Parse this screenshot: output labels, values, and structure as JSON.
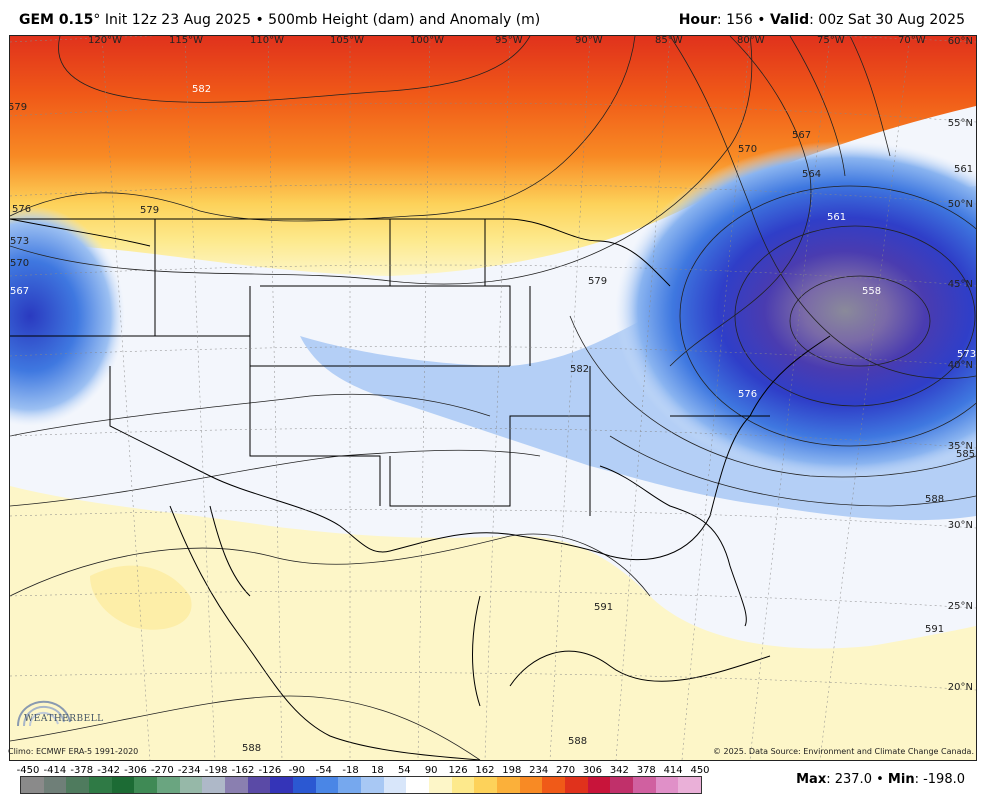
{
  "header": {
    "model": "GEM 0.15",
    "degree": "°",
    "init": "Init 12z 23 Aug 2025",
    "sep": "•",
    "product": "500mb Height (dam) and Anomaly (m)",
    "hour_label": "Hour",
    "hour_value": ": 156",
    "valid_label": "Valid",
    "valid_value": ": 00z Sat 30 Aug 2025"
  },
  "longitudes": [
    "120°W",
    "115°W",
    "110°W",
    "105°W",
    "100°W",
    "95°W",
    "90°W",
    "85°W",
    "80°W",
    "75°W",
    "70°W"
  ],
  "latitudes": [
    "60°N",
    "55°N",
    "50°N",
    "45°N",
    "40°N",
    "35°N",
    "30°N",
    "25°N",
    "20°N"
  ],
  "contour_labels": [
    "582",
    "579",
    "579",
    "576",
    "573",
    "570",
    "567",
    "570",
    "567",
    "564",
    "561",
    "561",
    "558",
    "579",
    "582",
    "576",
    "573",
    "585",
    "588",
    "591",
    "591",
    "588",
    "588"
  ],
  "footnotes": {
    "climo": "Climo: ECMWF ERA-5 1991-2020",
    "source": "© 2025. Data Source: Environment and Climate Change Canada."
  },
  "logo_text": "WEATHERBELL",
  "colorbar": {
    "ticks": [
      "-450",
      "-414",
      "-378",
      "-342",
      "-306",
      "-270",
      "-234",
      "-198",
      "-162",
      "-126",
      "-90",
      "-54",
      "-18",
      "18",
      "54",
      "90",
      "126",
      "162",
      "198",
      "234",
      "270",
      "306",
      "342",
      "378",
      "414",
      "450"
    ],
    "colors": [
      "#8a8a8a",
      "#6f7f78",
      "#4f7b5e",
      "#2f7a45",
      "#1c6b34",
      "#3f8a55",
      "#6aa580",
      "#96b8a8",
      "#aeb8c8",
      "#8a7fb0",
      "#5a4aa6",
      "#3434b8",
      "#2b58d2",
      "#4a86e6",
      "#76a8ee",
      "#a8c8f4",
      "#d8e6fa",
      "#ffffff",
      "#fdf6c8",
      "#fde98c",
      "#fdd25a",
      "#fbb03a",
      "#f88a24",
      "#f05a18",
      "#e0321c",
      "#c8143a",
      "#c0306a",
      "#d060a0",
      "#e090c8",
      "#eab0d8"
    ],
    "max_label": "Max",
    "max_value": ": 237.0",
    "min_label": "Min",
    "min_value": ": -198.0"
  }
}
